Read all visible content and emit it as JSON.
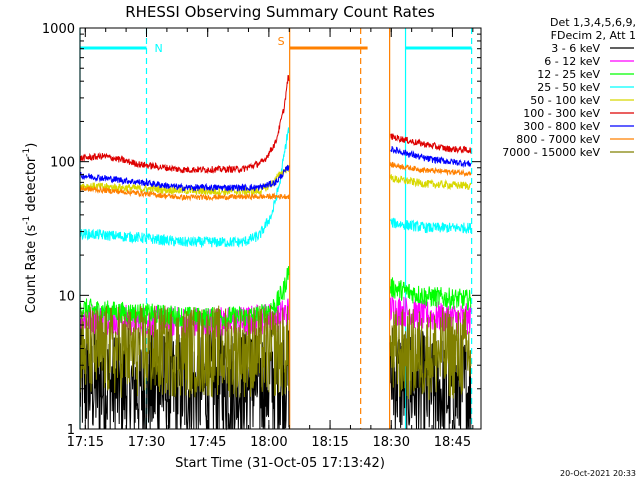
{
  "chart_data": {
    "type": "line",
    "title": "RHESSI Observing Summary Count Rates",
    "xlabel": "Start Time (31-Oct-05 17:13:42)",
    "ylabel_main": "Count Rate (s",
    "ylabel_sup1": "-1",
    "ylabel_mid": " detector",
    "ylabel_sup2": "-1",
    "ylabel_end": ")",
    "yscale": "log",
    "ylim": [
      1,
      1000
    ],
    "xlim_minutes": [
      17.2,
      115.5
    ],
    "x_unit": "minutes after 17:13:42",
    "x_ticks": [
      {
        "label": "17:15",
        "value": 1.3
      },
      {
        "label": "17:30",
        "value": 16.3
      },
      {
        "label": "17:45",
        "value": 31.3
      },
      {
        "label": "18:00",
        "value": 46.3
      },
      {
        "label": "18:15",
        "value": 61.3
      },
      {
        "label": "18:30",
        "value": 76.3
      },
      {
        "label": "18:45",
        "value": 91.3
      }
    ],
    "y_ticks": [
      {
        "label": "1",
        "value": 1
      },
      {
        "label": "10",
        "value": 10
      },
      {
        "label": "100",
        "value": 100
      },
      {
        "label": "1000",
        "value": 1000
      }
    ],
    "legend": {
      "header": [
        "Det 1,3,4,5,6,9,",
        "FDecim 2, Att 1"
      ],
      "entries": [
        {
          "label": "3 - 6 keV",
          "color": "#000000"
        },
        {
          "label": "6 - 12 keV",
          "color": "#ff00ff"
        },
        {
          "label": "12 - 25 keV",
          "color": "#00ff00"
        },
        {
          "label": "25 - 50 keV",
          "color": "#00ffff"
        },
        {
          "label": "50 - 100 keV",
          "color": "#d8d800"
        },
        {
          "label": "100 - 300 keV",
          "color": "#dd0000"
        },
        {
          "label": "300 - 800 keV",
          "color": "#0000ff"
        },
        {
          "label": "800 - 7000 keV",
          "color": "#ff8000"
        },
        {
          "label": "7000 - 15000 keV",
          "color": "#808000"
        }
      ]
    },
    "flags": [
      {
        "label": "N",
        "color": "#00ffff",
        "start_min": 0.0,
        "end_min": 16.3
      },
      {
        "label": "N",
        "color": "#00ffff",
        "start_min": 79.8,
        "end_min": 96.0
      },
      {
        "label": "S",
        "color": "#ff8000",
        "start_min": 51.4,
        "end_min": 70.5
      }
    ],
    "vlines": [
      {
        "minute": 0.0,
        "color": "#00ffff",
        "style": "solid"
      },
      {
        "minute": 16.3,
        "color": "#00ffff",
        "style": "dashed"
      },
      {
        "minute": 51.4,
        "color": "#ff8000",
        "style": "solid"
      },
      {
        "minute": 68.8,
        "color": "#ff8000",
        "style": "dashed"
      },
      {
        "minute": 75.9,
        "color": "#ff8000",
        "style": "solid"
      },
      {
        "minute": 79.8,
        "color": "#00ffff",
        "style": "solid"
      },
      {
        "minute": 96.0,
        "color": "#00ffff",
        "style": "dashed"
      }
    ],
    "segments": [
      {
        "start_min": 0.0,
        "end_min": 51.2
      },
      {
        "start_min": 76.1,
        "end_min": 95.8
      }
    ],
    "series": [
      {
        "name": "3 - 6 keV",
        "color": "#000000",
        "noise": 0.45,
        "min_floor": 1.0,
        "keys1": [
          [
            0,
            2.2
          ],
          [
            15,
            2.0
          ],
          [
            30,
            2.0
          ],
          [
            45,
            2.2
          ],
          [
            51,
            2.5
          ]
        ],
        "keys2": [
          [
            76,
            2.5
          ],
          [
            85,
            1.9
          ],
          [
            95.8,
            1.9
          ]
        ]
      },
      {
        "name": "6 - 12 keV",
        "color": "#ff00ff",
        "noise": 0.12,
        "keys1": [
          [
            0,
            6.8
          ],
          [
            20,
            6.3
          ],
          [
            40,
            6.3
          ],
          [
            49,
            7.0
          ],
          [
            51,
            7.5
          ]
        ],
        "keys2": [
          [
            76,
            8.0
          ],
          [
            85,
            7.0
          ],
          [
            95.8,
            6.6
          ]
        ]
      },
      {
        "name": "12 - 25 keV",
        "color": "#00ff00",
        "noise": 0.08,
        "keys1": [
          [
            0,
            8.0
          ],
          [
            10,
            7.5
          ],
          [
            30,
            6.8
          ],
          [
            44,
            7.0
          ],
          [
            48,
            8.5
          ],
          [
            50,
            11
          ],
          [
            51,
            15
          ]
        ],
        "keys2": [
          [
            76,
            11.5
          ],
          [
            85,
            9.8
          ],
          [
            95.8,
            9.2
          ]
        ]
      },
      {
        "name": "25 - 50 keV",
        "color": "#00ffff",
        "noise": 0.04,
        "keys1": [
          [
            0,
            29
          ],
          [
            15,
            27
          ],
          [
            25,
            25
          ],
          [
            40,
            25
          ],
          [
            44,
            28
          ],
          [
            47,
            40
          ],
          [
            49,
            70
          ],
          [
            51,
            170
          ]
        ],
        "keys2": [
          [
            76,
            35
          ],
          [
            85,
            32
          ],
          [
            95.8,
            32
          ]
        ]
      },
      {
        "name": "50 - 100 keV",
        "color": "#d8d800",
        "noise": 0.03,
        "keys1": [
          [
            0,
            66
          ],
          [
            15,
            63
          ],
          [
            30,
            60
          ],
          [
            44,
            60
          ],
          [
            47,
            68
          ],
          [
            49,
            80
          ],
          [
            51,
            90
          ]
        ],
        "keys2": [
          [
            76,
            75
          ],
          [
            85,
            68
          ],
          [
            95.8,
            66
          ]
        ]
      },
      {
        "name": "100 - 300 keV",
        "color": "#dd0000",
        "noise": 0.025,
        "keys1": [
          [
            0,
            106
          ],
          [
            6,
            110
          ],
          [
            15,
            95
          ],
          [
            25,
            87
          ],
          [
            40,
            88
          ],
          [
            45,
            100
          ],
          [
            48,
            140
          ],
          [
            50,
            250
          ],
          [
            51,
            420
          ]
        ],
        "keys2": [
          [
            76,
            155
          ],
          [
            82,
            140
          ],
          [
            90,
            125
          ],
          [
            95.8,
            122
          ]
        ]
      },
      {
        "name": "300 - 800 keV",
        "color": "#0000ff",
        "noise": 0.025,
        "keys1": [
          [
            0,
            79
          ],
          [
            15,
            70
          ],
          [
            25,
            64
          ],
          [
            44,
            64
          ],
          [
            48,
            70
          ],
          [
            51,
            90
          ]
        ],
        "keys2": [
          [
            76,
            125
          ],
          [
            85,
            105
          ],
          [
            95.8,
            96
          ]
        ]
      },
      {
        "name": "800 - 7000 keV",
        "color": "#ff8000",
        "noise": 0.02,
        "keys1": [
          [
            0,
            63
          ],
          [
            15,
            58
          ],
          [
            25,
            54
          ],
          [
            51,
            55
          ]
        ],
        "keys2": [
          [
            76,
            95
          ],
          [
            85,
            86
          ],
          [
            95.8,
            82
          ]
        ]
      },
      {
        "name": "7000 - 15000 keV",
        "color": "#808000",
        "noise": 0.35,
        "min_floor": 1.0,
        "keys1": [
          [
            0,
            3.8
          ],
          [
            51,
            3.8
          ]
        ],
        "keys2": [
          [
            76,
            3.6
          ],
          [
            95.8,
            3.7
          ]
        ]
      }
    ]
  },
  "footer": {
    "timestamp": "20-Oct-2021 20:33"
  }
}
